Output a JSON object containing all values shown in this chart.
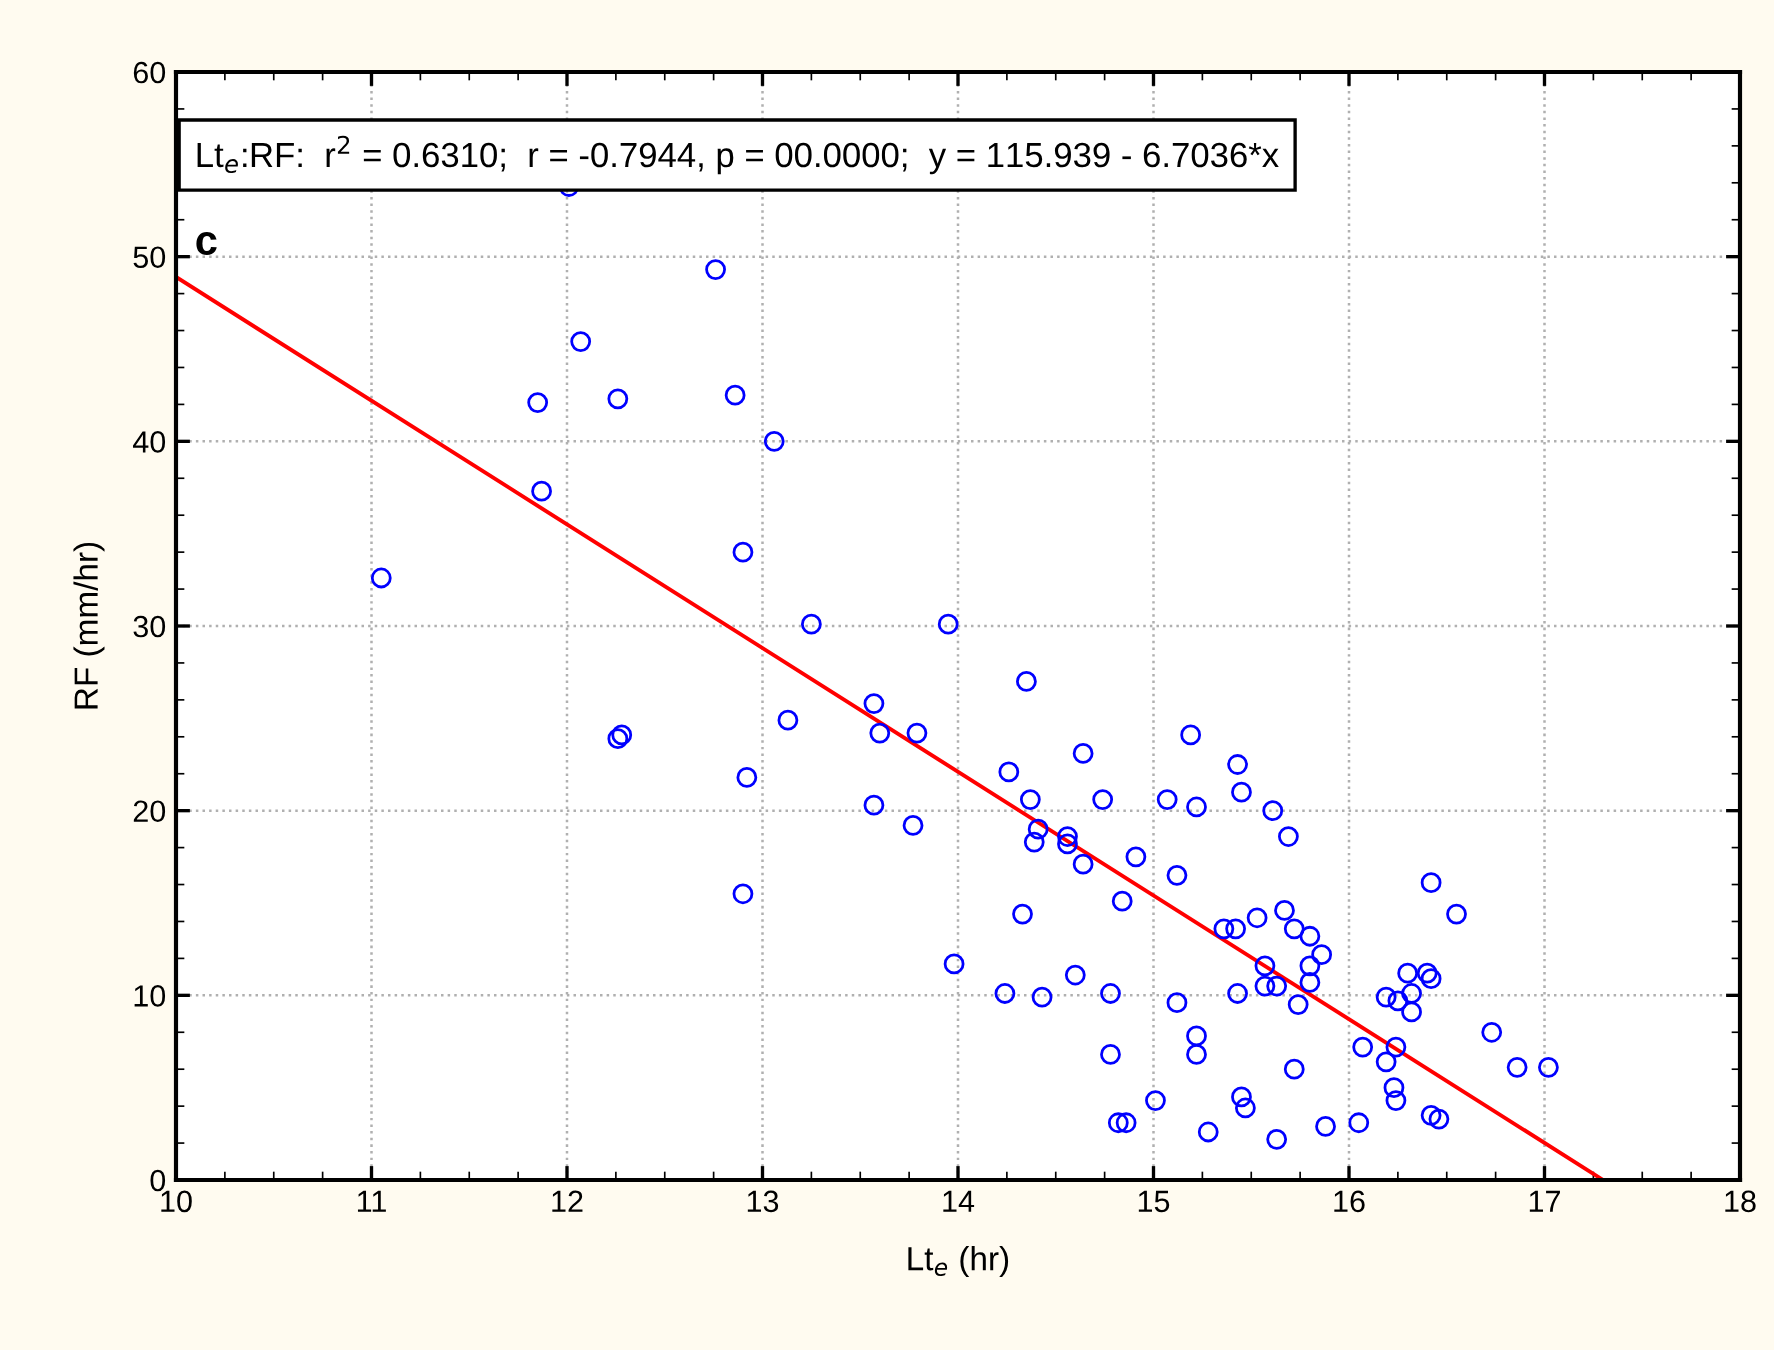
{
  "chart_data": {
    "type": "scatter",
    "xlabel": "Lt$_{e}$ (hr)",
    "ylabel": "RF (mm/hr)",
    "annotations": [
      "Lt$_{e}$:RF:  r$^{2}$ = 0.6310;  r = -0.7944, p = 00.0000;  y = 115.939 - 6.7036*x",
      "c"
    ],
    "xlim": [
      10,
      18
    ],
    "ylim": [
      0,
      60
    ],
    "xticks": [
      10,
      11,
      12,
      13,
      14,
      15,
      16,
      17,
      18
    ],
    "yticks": [
      0,
      10,
      20,
      30,
      40,
      50,
      60
    ],
    "grid": true,
    "marker": "circle",
    "series": [
      {
        "color": "#0000ff",
        "x": [
          11.05,
          12.01,
          12.76,
          12.07,
          11.85,
          12.26,
          12.86,
          13.06,
          11.87,
          12.9,
          13.25,
          13.95,
          12.26,
          12.28,
          13.13,
          12.92,
          12.9,
          13.57,
          13.6,
          13.79,
          13.57,
          13.77,
          14.35,
          14.26,
          14.37,
          14.64,
          14.41,
          14.39,
          14.56,
          14.56,
          14.64,
          14.74,
          14.91,
          14.84,
          15.12,
          15.07,
          15.22,
          15.19,
          15.43,
          15.45,
          15.61,
          15.69,
          14.33,
          13.98,
          14.24,
          14.43,
          14.6,
          14.78,
          15.12,
          14.78,
          15.22,
          15.22,
          15.01,
          14.82,
          14.86,
          15.28,
          15.45,
          15.47,
          15.63,
          15.88,
          16.05,
          15.43,
          15.36,
          15.42,
          15.53,
          15.67,
          15.72,
          15.8,
          15.86,
          15.8,
          15.8,
          15.57,
          15.57,
          15.63,
          15.74,
          15.72,
          16.19,
          16.25,
          16.32,
          16.32,
          16.3,
          16.4,
          16.42,
          16.42,
          16.55,
          16.07,
          16.24,
          16.19,
          16.23,
          16.24,
          16.42,
          16.46,
          16.73,
          16.86,
          17.02
        ],
        "values": [
          32.6,
          53.8,
          49.3,
          45.4,
          42.1,
          42.3,
          42.5,
          40.0,
          37.3,
          34.0,
          30.1,
          30.1,
          23.9,
          24.1,
          24.9,
          21.8,
          15.5,
          25.8,
          24.2,
          24.2,
          20.3,
          19.2,
          27.0,
          22.1,
          20.6,
          23.1,
          19.0,
          18.3,
          18.6,
          18.2,
          17.1,
          20.6,
          17.5,
          15.1,
          16.5,
          20.6,
          20.2,
          24.1,
          22.5,
          21.0,
          20.0,
          18.6,
          14.4,
          11.7,
          10.1,
          9.9,
          11.1,
          10.1,
          9.6,
          6.8,
          7.8,
          6.8,
          4.3,
          3.1,
          3.1,
          2.6,
          4.5,
          3.9,
          2.2,
          2.9,
          3.1,
          10.1,
          13.6,
          13.6,
          14.2,
          14.6,
          13.6,
          13.2,
          12.2,
          11.6,
          10.7,
          11.6,
          10.5,
          10.5,
          9.5,
          6.0,
          9.9,
          9.7,
          10.1,
          9.1,
          11.2,
          11.2,
          10.9,
          16.1,
          14.4,
          7.2,
          7.2,
          6.4,
          5.0,
          4.3,
          3.5,
          3.3,
          8.0,
          6.1,
          6.1
        ]
      },
      {
        "type": "line",
        "color": "#ff0000",
        "marker": "none",
        "x": [
          10,
          17.3
        ],
        "values": [
          48.9,
          0
        ]
      }
    ]
  }
}
